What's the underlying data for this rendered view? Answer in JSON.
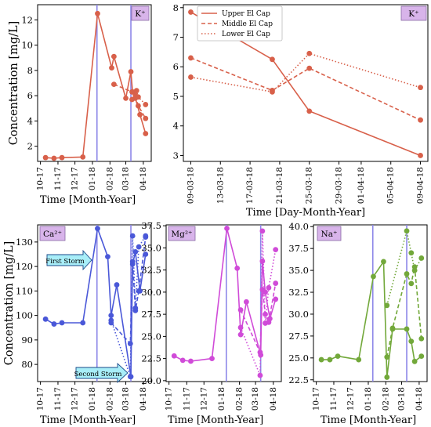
{
  "figure": {
    "ylabel": "Concentration [mg/L]",
    "legend": [
      "Upper El Cap",
      "Middle El Cap",
      "Lower El Cap"
    ],
    "annotations": [
      "First Storm",
      "Second Storm"
    ]
  },
  "chart_data": [
    {
      "type": "line",
      "ion": "K⁺",
      "color": "#d8604a",
      "xlabel": "Time [Month-Year]",
      "ylabel": "Concentration [mg/L]",
      "x_axis": "month",
      "xticks": [
        "10-17",
        "11-17",
        "12-17",
        "01-18",
        "02-18",
        "03-18",
        "04-18"
      ],
      "ylim": [
        0.8,
        13.2
      ],
      "yticks": [
        2,
        4,
        6,
        8,
        10,
        12
      ],
      "vlines": [
        "2018-01-09",
        "2018-03-10"
      ],
      "series": [
        {
          "style": "solid",
          "x": [
            "2017-10-10",
            "2017-10-25",
            "2017-11-08",
            "2017-12-15",
            "2018-01-10",
            "2018-02-04",
            "2018-02-08",
            "2018-03-01",
            "2018-03-10",
            "2018-03-13",
            "2018-03-18",
            "2018-03-26",
            "2018-04-05"
          ],
          "y": [
            1.1,
            1.05,
            1.1,
            1.15,
            12.5,
            8.2,
            9.1,
            5.8,
            7.9,
            6.3,
            5.8,
            4.5,
            3.0
          ]
        },
        {
          "style": "dashed",
          "x": [
            "2018-02-08",
            "2018-03-12",
            "2018-03-18",
            "2018-03-23",
            "2018-04-05"
          ],
          "y": [
            6.9,
            6.3,
            6.0,
            5.2,
            4.2
          ]
        },
        {
          "style": "dotted",
          "x": [
            "2018-03-12",
            "2018-03-20",
            "2018-03-23",
            "2018-04-05"
          ],
          "y": [
            5.7,
            6.4,
            5.9,
            5.3
          ]
        }
      ]
    },
    {
      "type": "line",
      "ion": "K⁺",
      "color": "#d8604a",
      "xlabel": "Time [Day-Month-Year]",
      "x_axis": "day",
      "xticks": [
        "09-03-18",
        "13-03-18",
        "17-03-18",
        "21-03-18",
        "25-03-18",
        "29-03-18",
        "01-04-18",
        "05-04-18",
        "09-04-18"
      ],
      "ylim": [
        2.8,
        8.1
      ],
      "yticks": [
        3,
        4,
        5,
        6,
        7,
        8
      ],
      "legend_position": "top-right",
      "series": [
        {
          "name": "Upper El Cap",
          "style": "solid",
          "x": [
            "2018-03-09",
            "2018-03-20",
            "2018-03-25",
            "2018-04-09"
          ],
          "y": [
            7.85,
            6.25,
            4.5,
            3.0
          ]
        },
        {
          "name": "Middle El Cap",
          "style": "dashed",
          "x": [
            "2018-03-09",
            "2018-03-20",
            "2018-03-25",
            "2018-04-09"
          ],
          "y": [
            6.3,
            5.2,
            5.95,
            4.2
          ]
        },
        {
          "name": "Lower El Cap",
          "style": "dotted",
          "x": [
            "2018-03-09",
            "2018-03-20",
            "2018-03-25",
            "2018-04-09"
          ],
          "y": [
            5.65,
            5.15,
            6.45,
            5.3
          ]
        }
      ]
    },
    {
      "type": "line",
      "ion": "Ca²⁺",
      "color": "#4a58d8",
      "xlabel": "Time [Month-Year]",
      "ylabel": "Concentration [mg/L]",
      "x_axis": "month",
      "xticks": [
        "10-17",
        "11-17",
        "12-17",
        "01-18",
        "02-18",
        "03-18",
        "04-18"
      ],
      "ylim": [
        73,
        137
      ],
      "yticks": [
        80,
        90,
        100,
        110,
        120,
        130
      ],
      "vlines": [
        "2018-01-09",
        "2018-03-10"
      ],
      "series": [
        {
          "style": "solid",
          "x": [
            "2017-10-10",
            "2017-10-25",
            "2017-11-08",
            "2017-12-15",
            "2018-01-10",
            "2018-01-28",
            "2018-02-03",
            "2018-02-13",
            "2018-03-10",
            "2018-03-13",
            "2018-03-18",
            "2018-03-26",
            "2018-04-05"
          ],
          "y": [
            98.5,
            96.5,
            97,
            97,
            135.5,
            124,
            100,
            112.5,
            75,
            121,
            126,
            110,
            125
          ]
        },
        {
          "style": "dashed",
          "x": [
            "2018-02-03",
            "2018-03-09",
            "2018-03-13",
            "2018-03-18",
            "2018-03-24",
            "2018-04-05"
          ],
          "y": [
            97,
            88.5,
            122,
            102,
            110,
            132
          ]
        },
        {
          "style": "dotted",
          "x": [
            "2018-02-03",
            "2018-03-09",
            "2018-03-13",
            "2018-03-18",
            "2018-03-24",
            "2018-04-05"
          ],
          "y": [
            98,
            75,
            132.5,
            103,
            128,
            132.5
          ]
        }
      ]
    },
    {
      "type": "line",
      "ion": "Mg²⁺",
      "color": "#d04bd8",
      "xlabel": "Time [Month-Year]",
      "x_axis": "month",
      "xticks": [
        "10-17",
        "11-17",
        "12-17",
        "01-18",
        "02-18",
        "03-18",
        "04-18"
      ],
      "ylim": [
        19.9,
        37.6
      ],
      "yticks": [
        20.0,
        22.5,
        25.0,
        27.5,
        30.0,
        32.5,
        35.0,
        37.5
      ],
      "vlines": [
        "2018-01-09",
        "2018-03-10"
      ],
      "series": [
        {
          "style": "solid",
          "x": [
            "2017-10-10",
            "2017-10-25",
            "2017-11-08",
            "2017-12-15",
            "2018-01-10",
            "2018-01-28",
            "2018-02-03",
            "2018-02-13",
            "2018-03-10",
            "2018-03-13",
            "2018-03-18",
            "2018-03-26",
            "2018-04-05"
          ],
          "y": [
            22.8,
            22.3,
            22.2,
            22.5,
            37.2,
            32.7,
            25.2,
            28.9,
            22.9,
            33.5,
            30,
            27,
            29.2
          ]
        },
        {
          "style": "dashed",
          "x": [
            "2018-02-03",
            "2018-03-09",
            "2018-03-13",
            "2018-03-18",
            "2018-03-24",
            "2018-04-05"
          ],
          "y": [
            28,
            23.2,
            30.3,
            27.5,
            26.6,
            31
          ]
        },
        {
          "style": "dotted",
          "x": [
            "2018-02-03",
            "2018-03-09",
            "2018-03-13",
            "2018-03-18",
            "2018-03-24",
            "2018-04-05"
          ],
          "y": [
            26,
            20.6,
            36.9,
            26.5,
            30.5,
            34.8
          ]
        }
      ]
    },
    {
      "type": "line",
      "ion": "Na⁺",
      "color": "#72a83a",
      "xlabel": "Time [Month-Year]",
      "x_axis": "month",
      "xticks": [
        "10-17",
        "11-17",
        "12-17",
        "01-18",
        "02-18",
        "03-18",
        "04-18"
      ],
      "ylim": [
        22.3,
        40.2
      ],
      "yticks": [
        22.5,
        25.0,
        27.5,
        30.0,
        32.5,
        35.0,
        37.5,
        40.0
      ],
      "vlines": [
        "2018-01-09",
        "2018-03-10"
      ],
      "series": [
        {
          "style": "solid",
          "x": [
            "2017-10-10",
            "2017-10-25",
            "2017-11-08",
            "2017-12-15",
            "2018-01-10",
            "2018-01-28",
            "2018-02-03",
            "2018-02-13",
            "2018-03-10",
            "2018-03-18",
            "2018-03-24",
            "2018-04-05"
          ],
          "y": [
            24.8,
            24.8,
            25.2,
            24.8,
            34.3,
            36,
            22.8,
            28.3,
            28.3,
            26.9,
            24.6,
            25.2
          ]
        },
        {
          "style": "dashed",
          "x": [
            "2018-02-03",
            "2018-02-13",
            "2018-03-10",
            "2018-03-18",
            "2018-03-24",
            "2018-04-05"
          ],
          "y": [
            25.1,
            28.4,
            34.6,
            33.5,
            35.4,
            27.2
          ]
        },
        {
          "style": "dotted",
          "x": [
            "2018-02-03",
            "2018-03-10",
            "2018-03-18",
            "2018-03-24",
            "2018-04-05"
          ],
          "y": [
            31,
            39.5,
            37,
            35,
            36.4
          ]
        }
      ]
    }
  ]
}
